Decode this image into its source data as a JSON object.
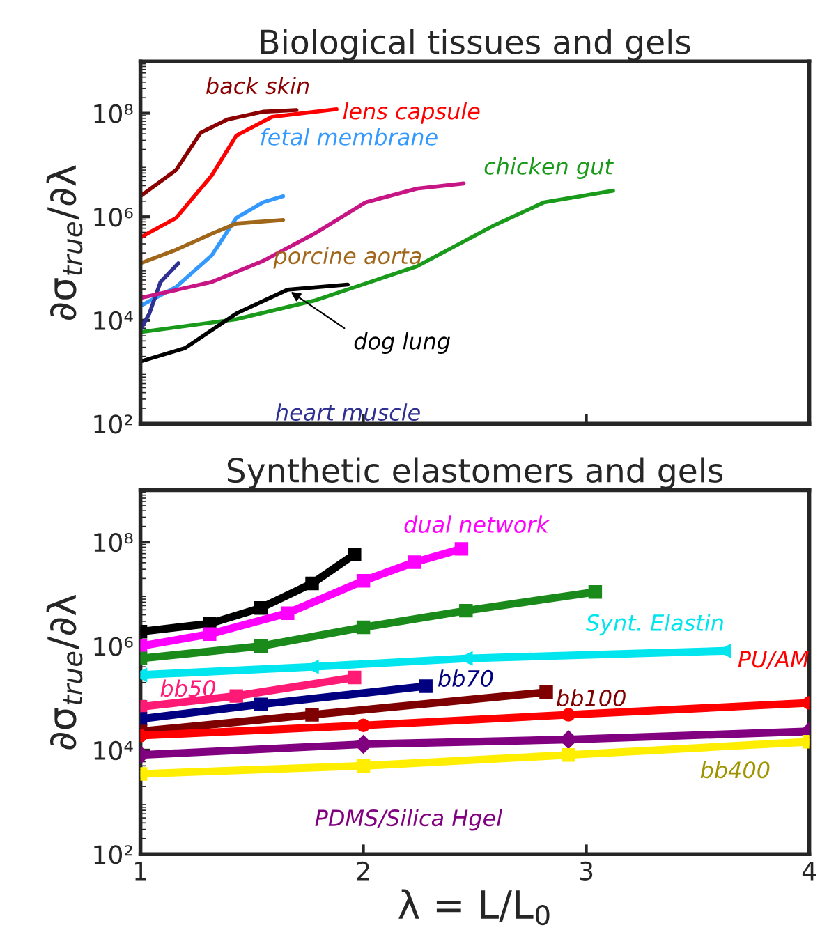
{
  "chart_data": [
    {
      "type": "line",
      "title": "Biological tissues and gels",
      "ylabel": "∂σ$_{true}$/∂λ",
      "log": "y",
      "xlim": [
        1,
        4
      ],
      "xticks": [
        {
          "value": 1,
          "label": null
        },
        {
          "value": 2,
          "label": null
        },
        {
          "value": 3,
          "label": null
        },
        {
          "value": 4,
          "label": null
        }
      ],
      "ylim": [
        100,
        1000000000
      ],
      "yticks": [
        {
          "value": 100,
          "label": "10²"
        },
        {
          "value": 10000,
          "label": "10⁴"
        },
        {
          "value": 1000000,
          "label": "10⁶"
        },
        {
          "value": 100000000,
          "label": "10⁸"
        }
      ],
      "tick_labels": "y",
      "grid": false,
      "legend": false,
      "line_style": "solid",
      "marker": "none",
      "series": [
        {
          "name": "back skin",
          "color": "#8b0000",
          "x": [
            1,
            1.16,
            1.27,
            1.39,
            1.55,
            1.7
          ],
          "values": [
            2500000.0,
            8000000.0,
            42000000.0,
            76000000.0,
            107000000.0,
            115000000.0
          ]
        },
        {
          "name": "lens capsule",
          "color": "#ff0000",
          "x": [
            1,
            1.16,
            1.32,
            1.43,
            1.59,
            1.88
          ],
          "values": [
            400000.0,
            950000.0,
            6300000.0,
            37000000.0,
            85000000.0,
            120000000.0
          ]
        },
        {
          "name": "fetal membrane",
          "color": "#3399ff",
          "x": [
            1,
            1.16,
            1.32,
            1.43,
            1.55,
            1.64
          ],
          "values": [
            19000.0,
            44000.0,
            180000.0,
            950000.0,
            1900000.0,
            2500000.0
          ]
        },
        {
          "name": "porcine aorta",
          "color": "#a0661a",
          "x": [
            1,
            1.16,
            1.32,
            1.43,
            1.64
          ],
          "values": [
            126000.0,
            230000.0,
            470000.0,
            740000.0,
            870000.0
          ]
        },
        {
          "name": "heart muscle",
          "color": "#2e3192",
          "x": [
            1,
            1.04,
            1.09,
            1.17
          ],
          "values": [
            6600.0,
            13500.0,
            55000.0,
            126000.0
          ]
        },
        {
          "color": "#c71585",
          "x": [
            1,
            1.32,
            1.55,
            1.78,
            2.01,
            2.24,
            2.45
          ],
          "values": [
            27000.0,
            55000.0,
            140000.0,
            470000.0,
            1900000.0,
            3500000.0,
            4400000.0
          ]
        },
        {
          "name": "chicken gut",
          "color": "#1a9a1a",
          "x": [
            1,
            1.43,
            1.78,
            2.24,
            2.58,
            2.81,
            3.12
          ],
          "values": [
            5900.0,
            10500.0,
            24000.0,
            110000.0,
            660000.0,
            1900000.0,
            3200000.0
          ]
        },
        {
          "name": "dog lung",
          "color": "#000000",
          "x": [
            1,
            1.2,
            1.43,
            1.66,
            1.93
          ],
          "values": [
            1600.0,
            2900.0,
            13500.0,
            39000.0,
            49000.0
          ]
        }
      ]
    },
    {
      "type": "line",
      "title": "Synthetic elastomers and gels",
      "ylabel": "∂σ$_{true}$/∂λ",
      "xlabel": "λ = L/L$_{0}$",
      "log": "y",
      "xlim": [
        1,
        4
      ],
      "xticks": [
        1,
        2,
        3,
        4
      ],
      "ylim": [
        100,
        1000000000
      ],
      "yticks": [
        {
          "value": 100,
          "label": "10²"
        },
        {
          "value": 10000,
          "label": "10⁴"
        },
        {
          "value": 1000000,
          "label": "10⁶"
        },
        {
          "value": 100000000,
          "label": "10⁸"
        }
      ],
      "grid": false,
      "legend": false,
      "line_style": "solid",
      "series": [
        {
          "color": "#000000",
          "marker": "square",
          "x": [
            1,
            1.31,
            1.54,
            1.77,
            1.96
          ],
          "values": [
            1900000.0,
            2700000.0,
            5400000.0,
            16000000.0,
            58000000.0
          ]
        },
        {
          "name": "dual network",
          "color": "#ff00ff",
          "marker": "square",
          "x": [
            1,
            1.31,
            1.66,
            2.0,
            2.23,
            2.44
          ],
          "values": [
            1000000.0,
            1700000.0,
            4300000.0,
            18000000.0,
            41000000.0,
            74000000.0
          ]
        },
        {
          "color": "#1a8a1a",
          "marker": "square",
          "x": [
            1,
            1.54,
            2.0,
            2.46,
            3.04
          ],
          "values": [
            580000.0,
            1000000.0,
            2300000.0,
            4800000.0,
            11000000.0
          ]
        },
        {
          "name": "Synt. Elastin",
          "color": "#00e5ee",
          "marker": "triangle",
          "x": [
            1,
            1.77,
            2.46,
            3.62
          ],
          "values": [
            280000.0,
            400000.0,
            580000.0,
            810000.0
          ]
        },
        {
          "name": "bb50",
          "color": "#ff1a75",
          "marker": "square",
          "x": [
            1,
            1.43,
            1.96
          ],
          "values": [
            68000.0,
            110000.0,
            250000.0
          ]
        },
        {
          "name": "bb70",
          "color": "#000080",
          "marker": "square",
          "x": [
            1,
            1.54,
            2.28
          ],
          "values": [
            40000.0,
            76000.0,
            170000.0
          ]
        },
        {
          "name": "bb100",
          "color": "#7f0000",
          "marker": "square",
          "x": [
            1,
            1.77,
            2.82
          ],
          "values": [
            23000.0,
            48000.0,
            130000.0
          ]
        },
        {
          "name": "PU/AM",
          "color": "#ff0000",
          "marker": "circle",
          "x": [
            1,
            2.0,
            2.92,
            4.0
          ],
          "values": [
            19000.0,
            30000.0,
            48000.0,
            81000.0
          ]
        },
        {
          "name": "PDMS/Silica Hgel",
          "color": "#800080",
          "marker": "diamond",
          "x": [
            1,
            2.0,
            2.92,
            4.0
          ],
          "values": [
            8100.0,
            13000.0,
            16000.0,
            23000.0
          ]
        },
        {
          "name": "bb400",
          "color": "#ffee00",
          "marker": "square",
          "x": [
            1,
            2.0,
            2.92,
            4.0
          ],
          "values": [
            3500.0,
            5000.0,
            8100.0,
            14500.0
          ]
        }
      ]
    }
  ]
}
